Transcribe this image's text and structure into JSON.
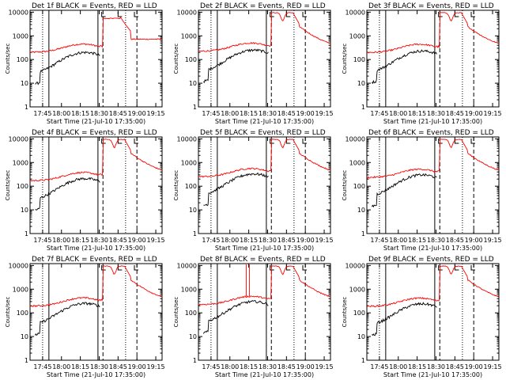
{
  "chart_data": {
    "type": "line",
    "panels": [
      {
        "title": "Det 1f BLACK = Events, RED = LLD",
        "detector": "1f"
      },
      {
        "title": "Det 2f BLACK = Events, RED = LLD",
        "detector": "2f"
      },
      {
        "title": "Det 3f BLACK = Events, RED = LLD",
        "detector": "3f"
      },
      {
        "title": "Det 4f BLACK = Events, RED = LLD",
        "detector": "4f"
      },
      {
        "title": "Det 5f BLACK = Events, RED = LLD",
        "detector": "5f"
      },
      {
        "title": "Det 6f BLACK = Events, RED = LLD",
        "detector": "6f"
      },
      {
        "title": "Det 7f BLACK = Events, RED = LLD",
        "detector": "7f"
      },
      {
        "title": "Det 8f BLACK = Events, RED = LLD",
        "detector": "8f"
      },
      {
        "title": "Det 9f BLACK = Events, RED = LLD",
        "detector": "9f"
      }
    ],
    "xlabel": "Start Time (21-Jul-10 17:35:00)",
    "ylabel": "Counts/sec",
    "x_ticks": [
      "17:45",
      "18:00",
      "18:15",
      "18:30",
      "18:45",
      "19:00",
      "19:15"
    ],
    "x_tick_minutes": [
      10,
      25,
      40,
      55,
      70,
      85,
      100
    ],
    "xlim_minutes": [
      0,
      105
    ],
    "y_scale": "log",
    "ylim": [
      1,
      12000
    ],
    "y_ticks": [
      "1",
      "10",
      "100",
      "1000",
      "10000"
    ],
    "y_tick_values": [
      1,
      10,
      100,
      1000,
      10000
    ],
    "markers": [
      {
        "minutes": 10,
        "style": "dotted"
      },
      {
        "minutes": 15,
        "style": "solid"
      },
      {
        "minutes": 54,
        "style": "solid"
      },
      {
        "minutes": 58,
        "style": "dashed"
      },
      {
        "minutes": 76,
        "style": "dotted"
      },
      {
        "minutes": 85,
        "style": "dashed"
      }
    ],
    "series": [
      {
        "name": "Events",
        "color": "#000000"
      },
      {
        "name": "LLD",
        "color": "#ff0000"
      }
    ]
  }
}
